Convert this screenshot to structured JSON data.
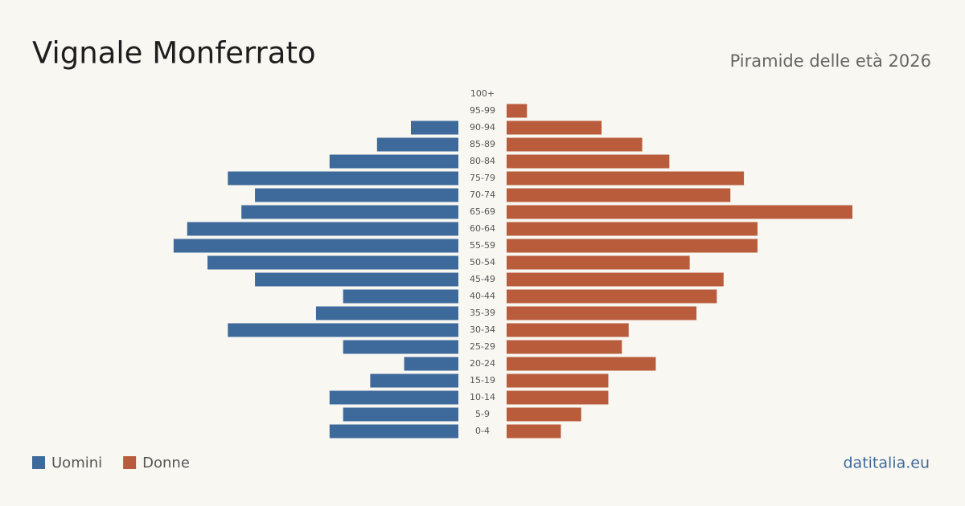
{
  "chart_data": {
    "type": "pyramid",
    "title": "Vignale Monferrato",
    "subtitle": "Piramide delle età 2026",
    "source": "datitalia.eu",
    "categories": [
      "100+",
      "95-99",
      "90-94",
      "85-89",
      "80-84",
      "75-79",
      "70-74",
      "65-69",
      "60-64",
      "55-59",
      "50-54",
      "45-49",
      "40-44",
      "35-39",
      "30-34",
      "25-29",
      "20-24",
      "15-19",
      "10-14",
      "5-9",
      "0-4"
    ],
    "series": [
      {
        "name": "Uomini",
        "color": "#3d6a9a",
        "values": [
          0,
          0,
          7,
          12,
          19,
          34,
          30,
          32,
          40,
          42,
          37,
          30,
          17,
          21,
          34,
          17,
          8,
          13,
          19,
          17,
          19
        ]
      },
      {
        "name": "Donne",
        "color": "#b95c3c",
        "values": [
          0,
          3,
          14,
          20,
          24,
          35,
          33,
          51,
          37,
          37,
          27,
          32,
          31,
          28,
          18,
          17,
          22,
          15,
          15,
          11,
          8
        ]
      }
    ]
  }
}
